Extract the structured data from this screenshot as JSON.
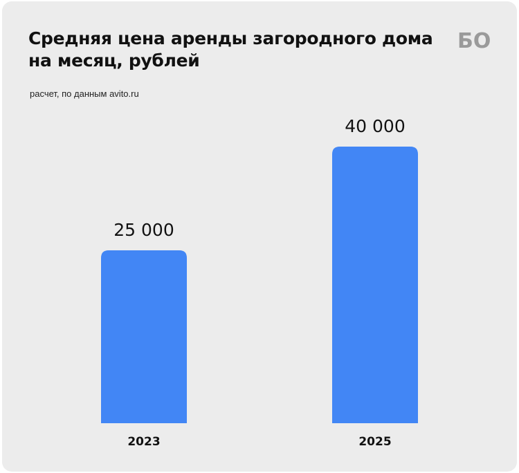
{
  "header": {
    "title": "Средняя цена аренды загородного дома на месяц, рублей",
    "subtitle": "расчет, по данным avito.ru",
    "logo_text": "БО"
  },
  "colors": {
    "bar": "#4286f5",
    "background": "#ececec",
    "logo": "#9a9a9a"
  },
  "chart_data": {
    "type": "bar",
    "categories": [
      "2023",
      "2025"
    ],
    "values": [
      25000,
      40000
    ],
    "value_labels": [
      "25 000",
      "40 000"
    ],
    "title": "Средняя цена аренды загородного дома на месяц, рублей",
    "subtitle": "расчет, по данным avito.ru",
    "xlabel": "",
    "ylabel": "",
    "ylim": [
      0,
      40000
    ],
    "grid": false,
    "legend": "none"
  }
}
